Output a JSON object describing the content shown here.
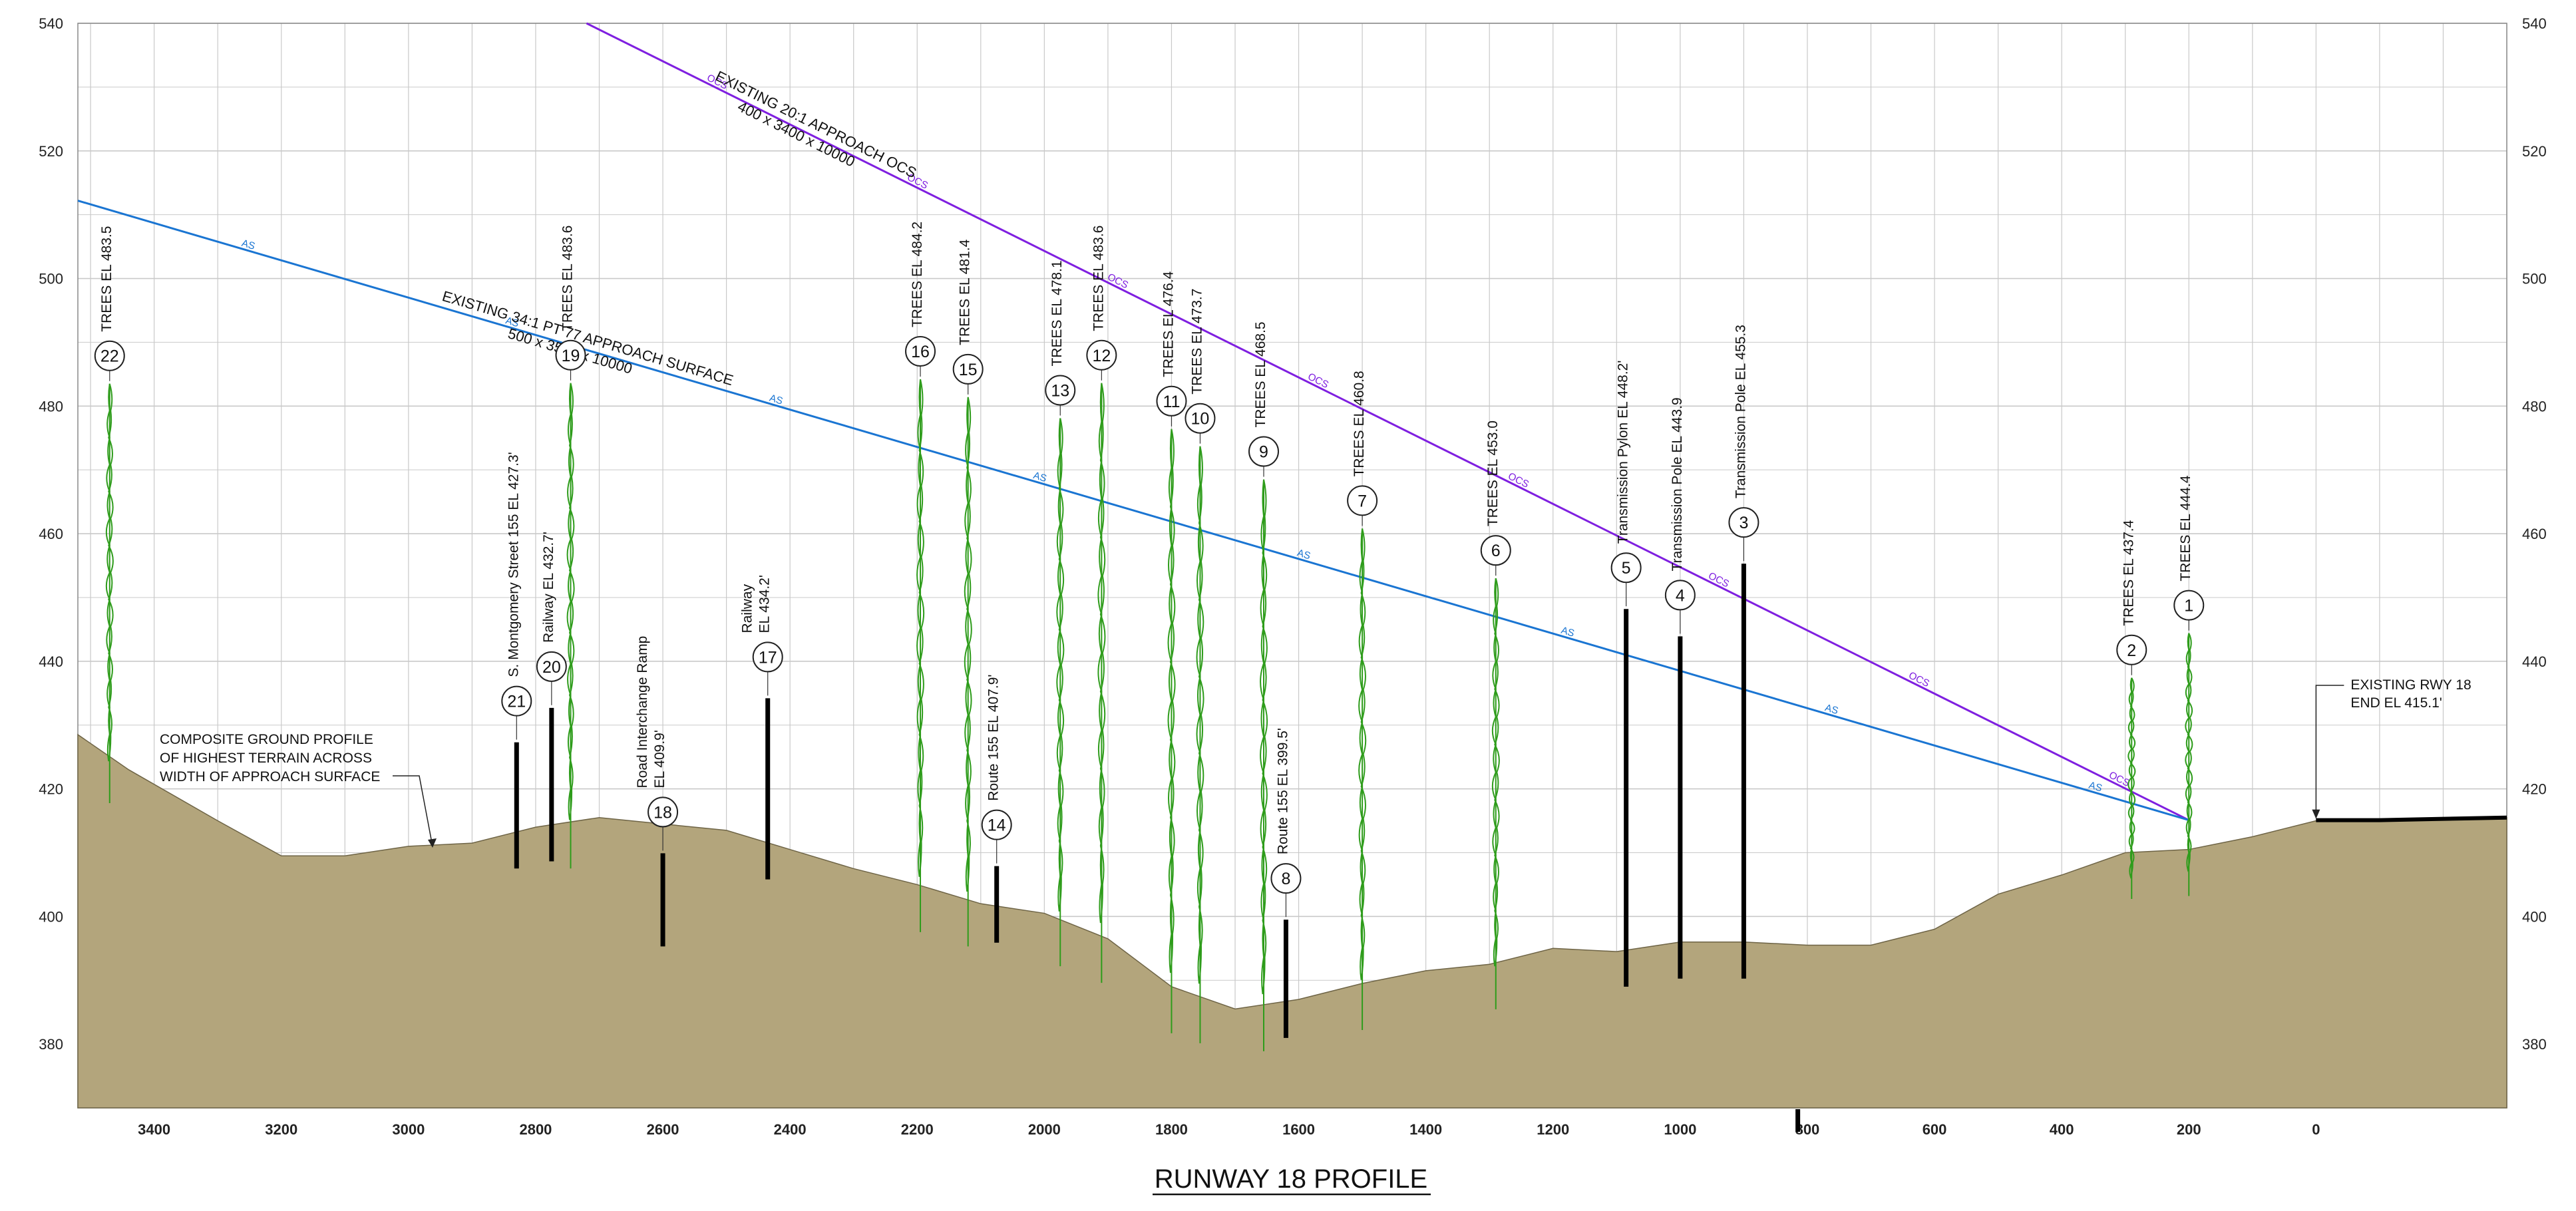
{
  "title": "RUNWAY 18 PROFILE",
  "axes": {
    "y_ticks": [
      380,
      400,
      420,
      440,
      460,
      480,
      500,
      520,
      540
    ],
    "x_ticks": [
      3400,
      3200,
      3000,
      2800,
      2600,
      2400,
      2200,
      2000,
      1800,
      1600,
      1400,
      1200,
      1000,
      800,
      600,
      400,
      200,
      0
    ],
    "x_range": [
      3520,
      -300
    ],
    "y_range": [
      370,
      540
    ]
  },
  "colors": {
    "ground": "#b3a57c",
    "ocs": "#7f1fe0",
    "as": "#1a75d2",
    "trees": "#2e9c1b",
    "grid": "#c9c9c9",
    "structure": "#000000"
  },
  "surfaces": {
    "ocs": {
      "label": "EXISTING 20:1 APPROACH OCS",
      "sub": "400 x 3400 x 10000",
      "marker": "OCS",
      "x1": 2720,
      "y1": 540,
      "x2": 200,
      "y2": 415.1
    },
    "as": {
      "label": "EXISTING 34:1 PT 77 APPROACH SURFACE",
      "sub": "500 x 3500 x 10000",
      "marker": "AS",
      "x1": 3520,
      "y1": 512.2,
      "x2": 200,
      "y2": 415.1
    }
  },
  "ground_profile": [
    [
      3520,
      428.5
    ],
    [
      3440,
      423
    ],
    [
      3300,
      415
    ],
    [
      3200,
      409.5
    ],
    [
      3100,
      409.5
    ],
    [
      3000,
      411
    ],
    [
      2900,
      411.5
    ],
    [
      2800,
      414
    ],
    [
      2700,
      415.5
    ],
    [
      2600,
      414.5
    ],
    [
      2500,
      413.5
    ],
    [
      2400,
      410.5
    ],
    [
      2300,
      407.5
    ],
    [
      2200,
      405
    ],
    [
      2100,
      402
    ],
    [
      2000,
      400.5
    ],
    [
      1900,
      396.5
    ],
    [
      1800,
      389
    ],
    [
      1700,
      385.5
    ],
    [
      1600,
      387
    ],
    [
      1500,
      389.5
    ],
    [
      1400,
      391.5
    ],
    [
      1300,
      392.5
    ],
    [
      1200,
      395
    ],
    [
      1100,
      394.5
    ],
    [
      1000,
      396
    ],
    [
      900,
      396
    ],
    [
      800,
      395.5
    ],
    [
      700,
      395.5
    ],
    [
      600,
      398
    ],
    [
      500,
      403.5
    ],
    [
      400,
      406.5
    ],
    [
      300,
      410
    ],
    [
      200,
      410.5
    ],
    [
      100,
      412.5
    ],
    [
      0,
      415
    ],
    [
      -100,
      415
    ],
    [
      -300,
      415.5
    ]
  ],
  "runway_end": {
    "label_1": "EXISTING RWY 18",
    "label_2": "END EL 415.1'",
    "x": 0,
    "el": 415.1
  },
  "ground_note": [
    "COMPOSITE GROUND PROFILE",
    "OF HIGHEST TERRAIN ACROSS",
    "WIDTH OF APPROACH SURFACE"
  ],
  "obstacles": [
    {
      "num": "1",
      "kind": "tree",
      "x": 200,
      "top": 444.4,
      "lines": [
        "TREES EL 444.4"
      ]
    },
    {
      "num": "2",
      "kind": "tree",
      "x": 290,
      "top": 437.4,
      "lines": [
        "TREES EL 437.4"
      ]
    },
    {
      "num": "3",
      "kind": "pole",
      "x": 900,
      "top": 455.3,
      "lines": [
        "Transmission Pole EL 455.3"
      ]
    },
    {
      "num": "4",
      "kind": "pole",
      "x": 1000,
      "top": 443.9,
      "lines": [
        "Transmission Pole EL 443.9"
      ]
    },
    {
      "num": "5",
      "kind": "pole",
      "x": 1085,
      "top": 448.2,
      "lines": [
        "Transmission Pylon EL 448.2'"
      ]
    },
    {
      "num": "6",
      "kind": "tree",
      "x": 1290,
      "top": 453.0,
      "lines": [
        "TREES EL 453.0"
      ]
    },
    {
      "num": "7",
      "kind": "tree",
      "x": 1500,
      "top": 460.8,
      "lines": [
        "TREES EL 460.8"
      ]
    },
    {
      "num": "8",
      "kind": "pole",
      "x": 1620,
      "top": 399.5,
      "lines": [
        "Route 155 EL 399.5'"
      ]
    },
    {
      "num": "9",
      "kind": "tree",
      "x": 1655,
      "top": 468.5,
      "lines": [
        "TREES EL 468.5"
      ]
    },
    {
      "num": "10",
      "kind": "tree",
      "x": 1755,
      "top": 473.7,
      "lines": [
        "TREES EL 473.7"
      ]
    },
    {
      "num": "11",
      "kind": "tree",
      "x": 1800,
      "top": 476.4,
      "lines": [
        "TREES EL 476.4"
      ]
    },
    {
      "num": "12",
      "kind": "tree",
      "x": 1910,
      "top": 483.6,
      "lines": [
        "TREES EL 483.6"
      ]
    },
    {
      "num": "13",
      "kind": "tree",
      "x": 1975,
      "top": 478.1,
      "lines": [
        "TREES EL 478.1"
      ]
    },
    {
      "num": "14",
      "kind": "pole",
      "x": 2075,
      "top": 407.9,
      "lines": [
        "Route 155 EL 407.9'"
      ]
    },
    {
      "num": "15",
      "kind": "tree",
      "x": 2120,
      "top": 481.4,
      "lines": [
        "TREES EL 481.4"
      ]
    },
    {
      "num": "16",
      "kind": "tree",
      "x": 2195,
      "top": 484.2,
      "lines": [
        "TREES EL 484.2"
      ]
    },
    {
      "num": "17",
      "kind": "pole",
      "x": 2435,
      "top": 434.2,
      "lines": [
        "Railway",
        "EL 434.2'"
      ]
    },
    {
      "num": "18",
      "kind": "pole",
      "x": 2600,
      "top": 409.9,
      "lines": [
        "Road Interchange Ramp",
        "EL 409.9'"
      ]
    },
    {
      "num": "19",
      "kind": "tree",
      "x": 2745,
      "top": 483.6,
      "lines": [
        "TREES EL 483.6"
      ]
    },
    {
      "num": "20",
      "kind": "pole",
      "x": 2775,
      "top": 432.7,
      "lines": [
        "Railway EL 432.7'"
      ]
    },
    {
      "num": "21",
      "kind": "pole",
      "x": 2830,
      "top": 427.3,
      "lines": [
        "S. Montgomery Street 155 EL 427.3'"
      ]
    },
    {
      "num": "22",
      "kind": "tree",
      "x": 3470,
      "top": 483.5,
      "lines": [
        "TREES EL 483.5"
      ]
    }
  ]
}
